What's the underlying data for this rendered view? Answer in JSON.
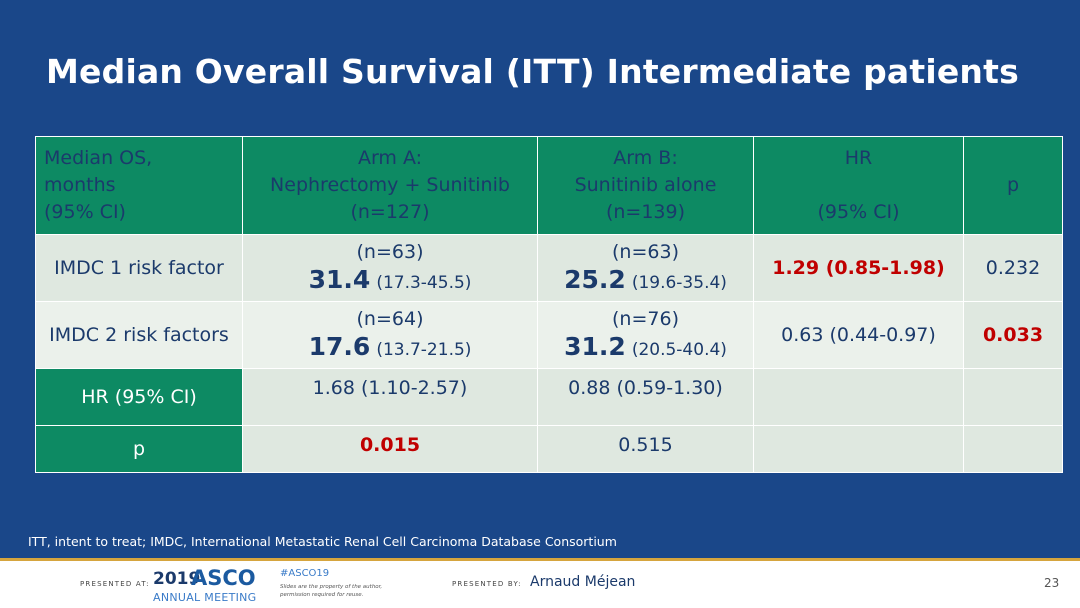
{
  "title": "Median Overall Survival (ITT) Intermediate patients",
  "table": {
    "header": {
      "col1": [
        "Median OS,",
        "months",
        "(95% CI)"
      ],
      "arm_a": [
        "Arm A:",
        "Nephrectomy + Sunitinib",
        "(n=127)"
      ],
      "arm_b": [
        "Arm B:",
        "Sunitinib alone",
        "(n=139)"
      ],
      "hr": [
        "HR",
        "(95% CI)"
      ],
      "p": "p"
    },
    "rows": [
      {
        "label": "IMDC 1 risk factor",
        "arm_a_n": "(n=63)",
        "arm_a_median": "31.4",
        "arm_a_ci": "(17.3-45.5)",
        "arm_b_n": "(n=63)",
        "arm_b_median": "25.2",
        "arm_b_ci": "(19.6-35.4)",
        "hr": "1.29 (0.85-1.98)",
        "p": "0.232"
      },
      {
        "label": "IMDC 2 risk factors",
        "arm_a_n": "(n=64)",
        "arm_a_median": "17.6",
        "arm_a_ci": "(13.7-21.5)",
        "arm_b_n": "(n=76)",
        "arm_b_median": "31.2",
        "arm_b_ci": "(20.5-40.4)",
        "hr": "0.63 (0.44-0.97)",
        "p": "0.033"
      }
    ],
    "hr_row": {
      "label": "HR (95% CI)",
      "arm_a": "1.68 (1.10-2.57)",
      "arm_b": "0.88 (0.59-1.30)"
    },
    "p_row": {
      "label": "p",
      "arm_a": "0.015",
      "arm_b": "0.515"
    }
  },
  "footnote": "ITT, intent to treat; IMDC, International Metastatic Renal Cell Carcinoma Database Consortium",
  "footer": {
    "presented_at": "PRESENTED AT:",
    "logo_year": "2019",
    "logo_asco": "ASCO",
    "logo_sub": "ANNUAL MEETING",
    "hashtag": "#ASCO19",
    "disclaimer_1": "Slides are the property of the author,",
    "disclaimer_2": "permission required for reuse.",
    "presented_by": "PRESENTED BY:",
    "presenter": "Arnaud Méjean",
    "page_number": "23"
  },
  "colors": {
    "background": "#1a4789",
    "header_green": "#0d8a63",
    "highlight_red": "#c00000",
    "text_navy": "#1b3a6b"
  }
}
